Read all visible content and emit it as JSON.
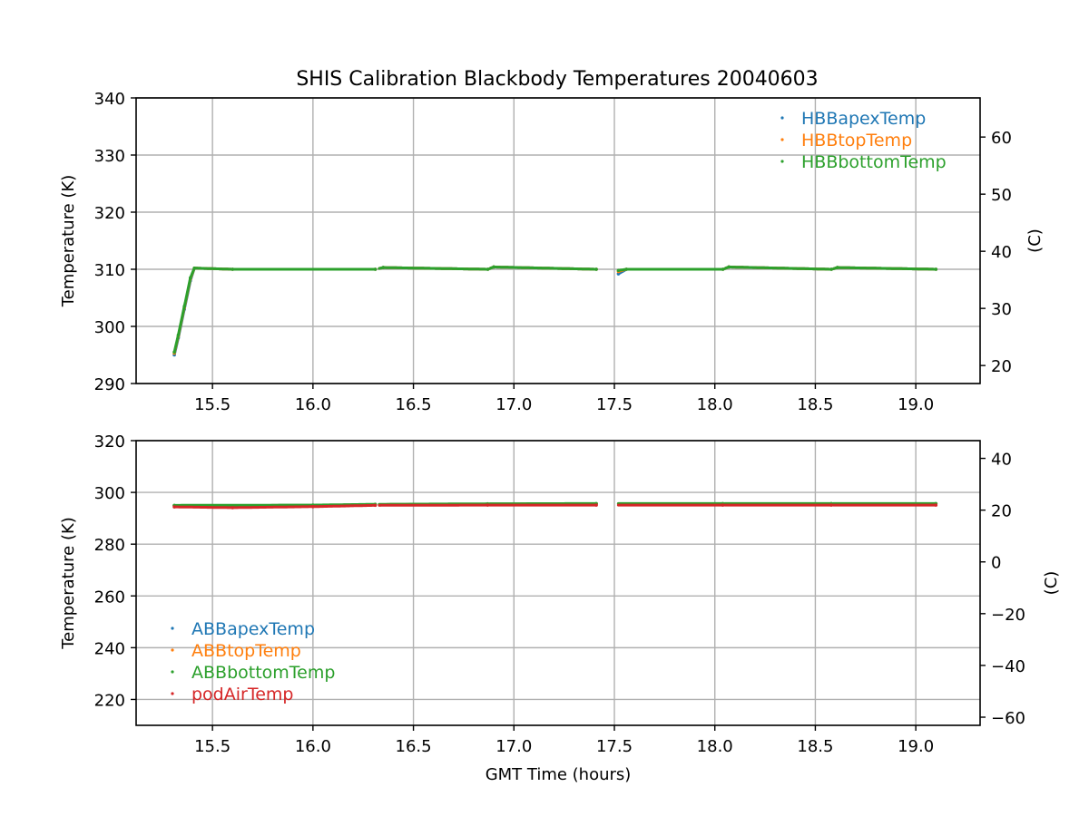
{
  "chart_data": [
    {
      "type": "scatter",
      "title": "SHIS Calibration Blackbody Temperatures 20040603",
      "xlabel": "",
      "ylabel": "Temperature (K)",
      "ylabel_right": "(C)",
      "xlim": [
        15.12,
        19.32
      ],
      "ylim": [
        290,
        340
      ],
      "ylim_right_celsius": [
        16.85,
        66.85
      ],
      "xticks": [
        "15.5",
        "16.0",
        "16.5",
        "17.0",
        "17.5",
        "18.0",
        "18.5",
        "19.0"
      ],
      "yticks": [
        "290",
        "300",
        "310",
        "320",
        "330",
        "340"
      ],
      "yticks_right": [
        "20",
        "30",
        "40",
        "50",
        "60"
      ],
      "grid": true,
      "legend_position": "top-right",
      "segments": [
        [
          15.31,
          16.31
        ],
        [
          16.33,
          16.87
        ],
        [
          16.88,
          17.41
        ],
        [
          17.52,
          18.04
        ],
        [
          18.05,
          18.58
        ],
        [
          18.59,
          19.1
        ]
      ],
      "series": [
        {
          "name": "HBBapexTemp",
          "color": "#1f77b4",
          "points": [
            [
              15.31,
              295.0
            ],
            [
              15.33,
              298.0
            ],
            [
              15.36,
              303.0
            ],
            [
              15.39,
              308.0
            ],
            [
              15.41,
              310.2
            ],
            [
              15.6,
              310.0
            ],
            [
              16.31,
              310.0
            ],
            [
              16.35,
              310.3
            ],
            [
              16.87,
              310.0
            ],
            [
              16.9,
              310.4
            ],
            [
              17.41,
              310.0
            ],
            [
              17.52,
              309.2
            ],
            [
              17.56,
              310.0
            ],
            [
              18.04,
              310.0
            ],
            [
              18.07,
              310.4
            ],
            [
              18.58,
              310.0
            ],
            [
              18.61,
              310.3
            ],
            [
              19.1,
              310.0
            ]
          ]
        },
        {
          "name": "HBBtopTemp",
          "color": "#ff7f0e",
          "points": [
            [
              15.31,
              295.3
            ],
            [
              15.33,
              298.3
            ],
            [
              15.36,
              303.3
            ],
            [
              15.39,
              308.3
            ],
            [
              15.41,
              310.2
            ],
            [
              15.6,
              310.0
            ],
            [
              16.31,
              310.0
            ],
            [
              16.35,
              310.3
            ],
            [
              16.87,
              310.0
            ],
            [
              16.9,
              310.4
            ],
            [
              17.41,
              310.0
            ],
            [
              17.52,
              309.6
            ],
            [
              17.56,
              310.0
            ],
            [
              18.04,
              310.0
            ],
            [
              18.07,
              310.4
            ],
            [
              18.58,
              310.0
            ],
            [
              18.61,
              310.3
            ],
            [
              19.1,
              310.0
            ]
          ]
        },
        {
          "name": "HBBbottomTemp",
          "color": "#2ca02c",
          "points": [
            [
              15.31,
              295.5
            ],
            [
              15.33,
              298.5
            ],
            [
              15.36,
              303.5
            ],
            [
              15.39,
              308.5
            ],
            [
              15.41,
              310.2
            ],
            [
              15.6,
              310.0
            ],
            [
              16.31,
              310.0
            ],
            [
              16.35,
              310.3
            ],
            [
              16.87,
              310.0
            ],
            [
              16.9,
              310.4
            ],
            [
              17.41,
              310.0
            ],
            [
              17.52,
              309.8
            ],
            [
              17.56,
              310.0
            ],
            [
              18.04,
              310.0
            ],
            [
              18.07,
              310.4
            ],
            [
              18.58,
              310.0
            ],
            [
              18.61,
              310.3
            ],
            [
              19.1,
              310.0
            ]
          ]
        }
      ]
    },
    {
      "type": "scatter",
      "title": "",
      "xlabel": "GMT Time (hours)",
      "ylabel": "Temperature (K)",
      "ylabel_right": "(C)",
      "xlim": [
        15.12,
        19.32
      ],
      "ylim": [
        210,
        320
      ],
      "ylim_right_celsius": [
        -63.15,
        46.85
      ],
      "xticks": [
        "15.5",
        "16.0",
        "16.5",
        "17.0",
        "17.5",
        "18.0",
        "18.5",
        "19.0"
      ],
      "yticks": [
        "220",
        "240",
        "260",
        "280",
        "300",
        "320"
      ],
      "yticks_right": [
        "−60",
        "−40",
        "−20",
        "0",
        "20",
        "40"
      ],
      "grid": true,
      "legend_position": "bottom-left",
      "segments": [
        [
          15.31,
          16.31
        ],
        [
          16.33,
          16.87
        ],
        [
          16.88,
          17.41
        ],
        [
          17.52,
          18.04
        ],
        [
          18.05,
          18.58
        ],
        [
          18.59,
          19.1
        ]
      ],
      "series": [
        {
          "name": "ABBapexTemp",
          "color": "#1f77b4",
          "points": [
            [
              15.31,
              294.9
            ],
            [
              16.0,
              295.0
            ],
            [
              16.31,
              295.3
            ],
            [
              16.87,
              295.5
            ],
            [
              17.41,
              295.6
            ],
            [
              18.04,
              295.6
            ],
            [
              18.58,
              295.6
            ],
            [
              19.1,
              295.6
            ]
          ]
        },
        {
          "name": "ABBtopTemp",
          "color": "#ff7f0e",
          "points": [
            [
              15.31,
              294.9
            ],
            [
              16.0,
              295.0
            ],
            [
              16.31,
              295.3
            ],
            [
              16.87,
              295.5
            ],
            [
              17.41,
              295.6
            ],
            [
              18.04,
              295.6
            ],
            [
              18.58,
              295.6
            ],
            [
              19.1,
              295.6
            ]
          ]
        },
        {
          "name": "ABBbottomTemp",
          "color": "#2ca02c",
          "points": [
            [
              15.31,
              295.0
            ],
            [
              16.0,
              295.1
            ],
            [
              16.31,
              295.4
            ],
            [
              16.87,
              295.6
            ],
            [
              17.41,
              295.7
            ],
            [
              18.04,
              295.7
            ],
            [
              18.58,
              295.7
            ],
            [
              19.1,
              295.7
            ]
          ]
        },
        {
          "name": "podAirTemp",
          "color": "#d62728",
          "points": [
            [
              15.31,
              294.4
            ],
            [
              15.6,
              294.1
            ],
            [
              16.0,
              294.5
            ],
            [
              16.31,
              295.0
            ],
            [
              16.87,
              295.1
            ],
            [
              17.41,
              295.1
            ],
            [
              18.04,
              295.1
            ],
            [
              18.58,
              295.1
            ],
            [
              19.1,
              295.1
            ]
          ]
        }
      ]
    }
  ]
}
